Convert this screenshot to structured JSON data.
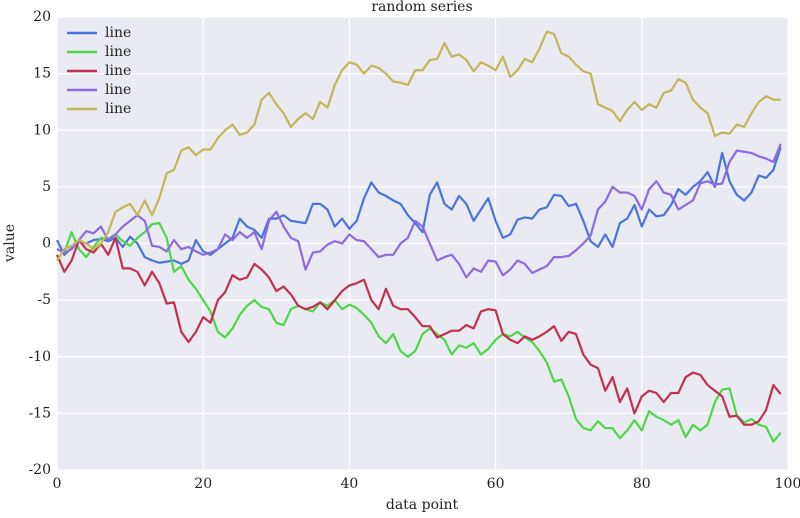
{
  "chart_data": {
    "type": "line",
    "title": "random series",
    "xlabel": "data point",
    "ylabel": "value",
    "x": [
      0,
      1,
      2,
      3,
      4,
      5,
      6,
      7,
      8,
      9,
      10,
      11,
      12,
      13,
      14,
      15,
      16,
      17,
      18,
      19,
      20,
      21,
      22,
      23,
      24,
      25,
      26,
      27,
      28,
      29,
      30,
      31,
      32,
      33,
      34,
      35,
      36,
      37,
      38,
      39,
      40,
      41,
      42,
      43,
      44,
      45,
      46,
      47,
      48,
      49,
      50,
      51,
      52,
      53,
      54,
      55,
      56,
      57,
      58,
      59,
      60,
      61,
      62,
      63,
      64,
      65,
      66,
      67,
      68,
      69,
      70,
      71,
      72,
      73,
      74,
      75,
      76,
      77,
      78,
      79,
      80,
      81,
      82,
      83,
      84,
      85,
      86,
      87,
      88,
      89,
      90,
      91,
      92,
      93,
      94,
      95,
      96,
      97,
      98,
      99
    ],
    "xlim": [
      0,
      100
    ],
    "xticks": [
      0,
      20,
      40,
      60,
      80,
      100
    ],
    "ylim": [
      -20,
      20
    ],
    "yticks": [
      -20,
      -15,
      -10,
      -5,
      0,
      5,
      10,
      15,
      20
    ],
    "grid": true,
    "legend": "upper left",
    "series": [
      {
        "name": "line",
        "color": "#4a73db",
        "values": [
          0.3,
          -1,
          -0.4,
          0.2,
          0,
          0.3,
          0.4,
          0.2,
          0.5,
          -0.3,
          0.6,
          0,
          -1.2,
          -1.5,
          -1.7,
          -1.6,
          -1.5,
          -1.8,
          -1.5,
          0.3,
          -0.7,
          -1,
          -0.5,
          0,
          0.5,
          2.2,
          1.5,
          1.2,
          0.5,
          2.2,
          2.2,
          2.5,
          2,
          1.9,
          1.8,
          3.5,
          3.5,
          3,
          1.5,
          2.2,
          1.3,
          2,
          4,
          5.4,
          4.5,
          4.2,
          3.8,
          3.5,
          2.5,
          1.8,
          1,
          4.3,
          5.4,
          3.5,
          3,
          4.2,
          3.5,
          2,
          3,
          4,
          2,
          0.5,
          0.8,
          2.1,
          2.3,
          2.2,
          3,
          3.2,
          4.3,
          4.2,
          3.3,
          3.5,
          2,
          0.2,
          -0.3,
          0.8,
          -0.3,
          1.8,
          2.2,
          3.4,
          1.5,
          3,
          2.4,
          2.5,
          3.4,
          4.8,
          4.3,
          5,
          5.5,
          6.3,
          5,
          8,
          5.5,
          4.3,
          3.8,
          4.5,
          6,
          5.8,
          6.5,
          8.5
        ]
      },
      {
        "name": "line",
        "color": "#4ed64a",
        "values": [
          -0.5,
          -0.8,
          1,
          -0.5,
          -1.2,
          -0.3,
          0.5,
          0.4,
          0.8,
          0.2,
          -0.2,
          0.5,
          1,
          1.7,
          1.8,
          0.5,
          -2.5,
          -2,
          -3.2,
          -4,
          -5,
          -6,
          -7.8,
          -8.3,
          -7.5,
          -6.3,
          -5.5,
          -5,
          -5.6,
          -5.8,
          -7,
          -7.2,
          -5.8,
          -5.5,
          -5.8,
          -6,
          -5.2,
          -5.5,
          -5,
          -5.8,
          -5.4,
          -5.7,
          -6.3,
          -7,
          -8.2,
          -8.8,
          -8,
          -9.5,
          -10,
          -9.5,
          -8,
          -7.5,
          -8,
          -8.5,
          -9.8,
          -9,
          -9.2,
          -8.8,
          -9.8,
          -9.3,
          -8.5,
          -8,
          -8.2,
          -7.8,
          -8.3,
          -8.7,
          -9.5,
          -10.5,
          -12.2,
          -12,
          -13.5,
          -15.5,
          -16.3,
          -16.5,
          -15.7,
          -16.3,
          -16.3,
          -17.2,
          -16.5,
          -15.6,
          -16.5,
          -14.8,
          -15.3,
          -15.6,
          -16,
          -15.6,
          -17.1,
          -16,
          -16.5,
          -16,
          -14,
          -12.9,
          -12.8,
          -15.2,
          -15.8,
          -15.5,
          -16,
          -16.2,
          -17.5,
          -16.7
        ]
      },
      {
        "name": "line",
        "color": "#c1304e",
        "values": [
          -1,
          -2.5,
          -1.5,
          0.3,
          -0.5,
          -0.8,
          0,
          -1,
          0.5,
          -2.2,
          -2.2,
          -2.5,
          -3.7,
          -2.5,
          -3.5,
          -5.3,
          -5.2,
          -7.8,
          -8.7,
          -7.8,
          -6.5,
          -7,
          -5,
          -4.3,
          -2.8,
          -3.2,
          -3,
          -1.8,
          -2.3,
          -3,
          -4.2,
          -3.8,
          -4.5,
          -5.5,
          -5.8,
          -5.6,
          -5.2,
          -5.8,
          -5,
          -4.2,
          -3.7,
          -3.5,
          -3.2,
          -5,
          -5.8,
          -4,
          -5.5,
          -5.8,
          -5.8,
          -6.5,
          -7.3,
          -7.3,
          -8.3,
          -8,
          -7.7,
          -7.7,
          -7.2,
          -7.5,
          -6,
          -5.8,
          -5.9,
          -8,
          -8.5,
          -8.8,
          -8.2,
          -8.5,
          -8.2,
          -7.8,
          -7.3,
          -8.6,
          -7.8,
          -8,
          -9.8,
          -10.7,
          -11,
          -13,
          -11.8,
          -14,
          -12.8,
          -15,
          -13.5,
          -13,
          -13.2,
          -14,
          -13.2,
          -13.2,
          -11.8,
          -11.4,
          -11.6,
          -12.5,
          -13,
          -13.5,
          -15.3,
          -15.2,
          -16,
          -16,
          -15.7,
          -14.7,
          -12.5,
          -13.3
        ]
      },
      {
        "name": "line",
        "color": "#8d6ae2",
        "values": [
          -0.5,
          -0.8,
          -0.5,
          0.3,
          1.1,
          0.9,
          1.5,
          0.3,
          0.8,
          1.5,
          2,
          2.5,
          2,
          -0.2,
          -0.3,
          -0.7,
          0.3,
          -0.5,
          -0.3,
          -0.7,
          -1,
          -0.8,
          -0.5,
          0.8,
          0.3,
          1,
          0.5,
          1,
          -0.5,
          2,
          2.8,
          1.5,
          0.5,
          0.2,
          -2.3,
          -0.8,
          -0.7,
          -0.1,
          0.2,
          0,
          0.8,
          0.3,
          0.2,
          -0.5,
          -1.2,
          -1,
          -1,
          0,
          0.5,
          2,
          1.5,
          0,
          -1.5,
          -1.2,
          -1,
          -1.8,
          -3,
          -2.2,
          -2.5,
          -1.5,
          -1.6,
          -2.8,
          -2.3,
          -1.5,
          -1.8,
          -2.6,
          -2.3,
          -2,
          -1.2,
          -1.2,
          -1.1,
          -0.6,
          0,
          0.7,
          3,
          3.7,
          5,
          4.5,
          4.5,
          4.2,
          3,
          4.8,
          5.5,
          4.5,
          4.3,
          3,
          3.4,
          3.8,
          5.3,
          5.5,
          5.2,
          5.3,
          7.2,
          8.2,
          8.1,
          8,
          7.7,
          7.5,
          7.2,
          8.8
        ]
      },
      {
        "name": "line",
        "color": "#c4b55b",
        "values": [
          -1.5,
          -0.5,
          -0.2,
          0.3,
          0,
          -0.5,
          0,
          1,
          2.8,
          3.2,
          3.5,
          2.5,
          3.8,
          2.5,
          4,
          6.2,
          6.5,
          8.2,
          8.5,
          7.8,
          8.3,
          8.3,
          9.3,
          10,
          10.5,
          9.6,
          9.8,
          10.5,
          12.7,
          13.3,
          12.3,
          11.5,
          10.3,
          11,
          11.5,
          11,
          12.5,
          12,
          14,
          15.3,
          16,
          15.8,
          15,
          15.7,
          15.5,
          15,
          14.3,
          14.2,
          14,
          15.3,
          15.3,
          16.2,
          16.3,
          17.7,
          16.5,
          16.7,
          16.2,
          15.2,
          16,
          15.7,
          15.3,
          16.5,
          14.7,
          15.3,
          16.3,
          16,
          17.2,
          18.7,
          18.5,
          16.8,
          16.5,
          15.8,
          15.2,
          15,
          12.3,
          12,
          11.7,
          10.8,
          11.8,
          12.5,
          11.8,
          12.3,
          12,
          13.3,
          13.5,
          14.5,
          14.2,
          12.7,
          12,
          11.5,
          9.5,
          9.8,
          9.7,
          10.5,
          10.3,
          11.5,
          12.5,
          13,
          12.7,
          12.7
        ]
      }
    ]
  }
}
